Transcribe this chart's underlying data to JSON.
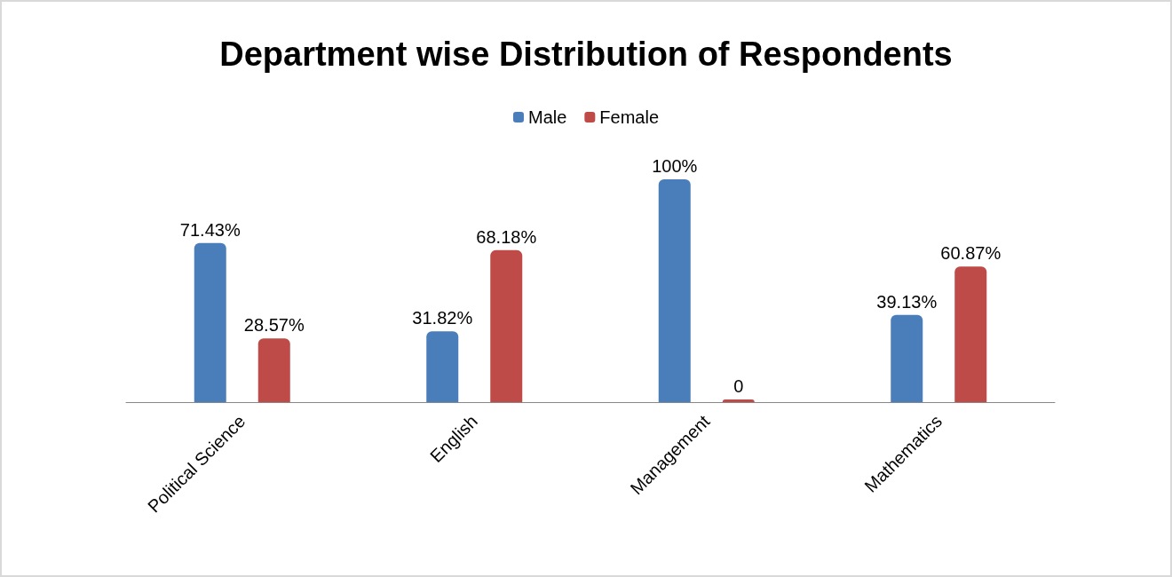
{
  "chart_data": {
    "type": "bar",
    "title": "Department wise Distribution of Respondents",
    "categories": [
      "Political Science",
      "English",
      "Management",
      "Mathematics"
    ],
    "series": [
      {
        "name": "Male",
        "color": "#4a7ebb",
        "values": [
          71.43,
          31.82,
          100,
          39.13
        ],
        "value_labels": [
          "71.43%",
          "31.82%",
          "100%",
          "39.13%"
        ]
      },
      {
        "name": "Female",
        "color": "#be4b48",
        "values": [
          28.57,
          68.18,
          0,
          60.87
        ],
        "value_labels": [
          "28.57%",
          "68.18%",
          "0",
          "60.87%"
        ]
      }
    ],
    "legend": "top",
    "grid": false,
    "tick_labels": "x"
  }
}
